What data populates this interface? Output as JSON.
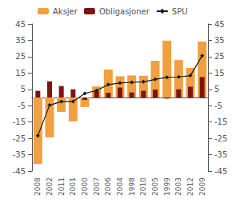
{
  "chart_data": {
    "type": "bar",
    "categories": [
      "2008",
      "2002",
      "2011",
      "2001",
      "2000",
      "2007",
      "2006",
      "2004",
      "1998",
      "2010",
      "2005",
      "1999",
      "2003",
      "2012",
      "2009"
    ],
    "series": [
      {
        "name": "Aksjer",
        "type": "bar",
        "color": "#f0a040",
        "values": [
          -40.7,
          -24.4,
          -8.8,
          -14.6,
          -5.8,
          6.8,
          17.1,
          13.0,
          13.5,
          13.3,
          22.5,
          34.8,
          22.9,
          18.1,
          34.3
        ]
      },
      {
        "name": "Obligasjoner",
        "type": "bar",
        "color": "#7b1515",
        "values": [
          4.1,
          9.9,
          7.0,
          5.0,
          -1.5,
          4.0,
          2.9,
          6.1,
          3.1,
          4.1,
          4.8,
          -0.7,
          5.0,
          6.6,
          12.5
        ]
      },
      {
        "name": "SPU",
        "type": "line",
        "color": "#1a1a1a",
        "marker": "diamond",
        "axis": "y2",
        "values": [
          -23.3,
          -4.7,
          -2.5,
          -2.5,
          2.5,
          4.3,
          7.9,
          8.9,
          9.3,
          9.6,
          11.1,
          12.4,
          12.6,
          13.4,
          25.6
        ]
      }
    ],
    "ylim": [
      -45,
      45
    ],
    "yticks": [
      -45,
      -35,
      -25,
      -15,
      -5,
      5,
      15,
      25,
      35,
      45
    ],
    "y2lim": [
      -45,
      45
    ],
    "y2ticks": [
      -45,
      -35,
      -25,
      -15,
      -5,
      5,
      15,
      25,
      35,
      45
    ],
    "grid": false,
    "legend": "upper left"
  }
}
